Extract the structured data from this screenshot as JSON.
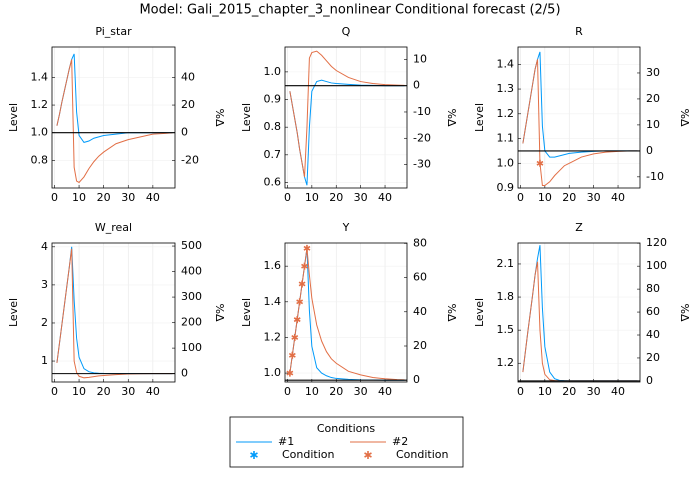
{
  "title": "Model: Gali_2015_chapter_3_nonlinear      Conditional forecast  (2/5)",
  "legend": {
    "title": "Conditions",
    "items": [
      {
        "label": "#1",
        "kind": "line",
        "color": "#009afa"
      },
      {
        "label": "#2",
        "kind": "line",
        "color": "#e26f46"
      },
      {
        "label": "Condition",
        "kind": "star",
        "color": "#009afa"
      },
      {
        "label": "Condition",
        "kind": "star",
        "color": "#e26f46"
      }
    ]
  },
  "chart_data": [
    {
      "type": "line",
      "title": "Pi_star",
      "ylabel": "Level",
      "y2label": "%Δ",
      "grid": true,
      "x": [
        1,
        2,
        3,
        4,
        5,
        6,
        7,
        8,
        9,
        10,
        12,
        14,
        16,
        18,
        20,
        25,
        30,
        35,
        40,
        45,
        48
      ],
      "xlim": [
        -1,
        49
      ],
      "xticks": [
        0,
        10,
        20,
        30,
        40
      ],
      "ylim": [
        0.6,
        1.62
      ],
      "yticks": [
        0.8,
        {
          "value": 1.0,
          "label": "1.0"
        },
        1.2,
        1.4
      ],
      "y2lim": [
        -40,
        62
      ],
      "y2ticks": [
        -20,
        0,
        20,
        40
      ],
      "baseline": 1.0,
      "series": [
        {
          "color": "#009afa",
          "values": [
            1.05,
            1.13,
            1.22,
            1.3,
            1.38,
            1.46,
            1.53,
            1.57,
            1.15,
            0.98,
            0.93,
            0.94,
            0.96,
            0.97,
            0.98,
            0.99,
            1.0,
            1.0,
            1.0,
            1.0,
            1.0
          ]
        },
        {
          "color": "#e26f46",
          "values": [
            1.05,
            1.13,
            1.22,
            1.3,
            1.38,
            1.46,
            1.53,
            0.75,
            0.65,
            0.64,
            0.68,
            0.74,
            0.79,
            0.83,
            0.86,
            0.92,
            0.95,
            0.97,
            0.99,
            0.995,
            1.0
          ]
        }
      ]
    },
    {
      "type": "line",
      "title": "Q",
      "ylabel": "Level",
      "y2label": "%Δ",
      "grid": true,
      "x": [
        1,
        2,
        3,
        4,
        5,
        6,
        7,
        8,
        9,
        10,
        12,
        14,
        16,
        18,
        20,
        25,
        30,
        35,
        40,
        45,
        48
      ],
      "xlim": [
        -1,
        49
      ],
      "xticks": [
        0,
        10,
        20,
        30,
        40
      ],
      "ylim": [
        0.58,
        1.09
      ],
      "yticks": [
        0.6,
        0.7,
        0.8,
        0.9,
        {
          "value": 1.0,
          "label": "1.0"
        }
      ],
      "y2lim": [
        -38.9,
        14.7
      ],
      "y2ticks": [
        -30,
        -20,
        -10,
        0,
        10
      ],
      "baseline": 0.95,
      "series": [
        {
          "color": "#009afa",
          "values": [
            0.93,
            0.88,
            0.83,
            0.78,
            0.72,
            0.67,
            0.62,
            0.59,
            0.8,
            0.93,
            0.965,
            0.97,
            0.965,
            0.96,
            0.958,
            0.955,
            0.952,
            0.951,
            0.95,
            0.95,
            0.95
          ]
        },
        {
          "color": "#e26f46",
          "values": [
            0.93,
            0.88,
            0.83,
            0.78,
            0.72,
            0.67,
            0.62,
            0.8,
            1.05,
            1.07,
            1.075,
            1.06,
            1.04,
            1.02,
            1.005,
            0.98,
            0.965,
            0.958,
            0.954,
            0.952,
            0.951
          ]
        }
      ]
    },
    {
      "type": "line",
      "title": "R",
      "ylabel": "Level",
      "y2label": "%Δ",
      "grid": true,
      "x": [
        1,
        2,
        3,
        4,
        5,
        6,
        7,
        8,
        9,
        10,
        12,
        14,
        16,
        18,
        20,
        25,
        30,
        35,
        40,
        45,
        48
      ],
      "xlim": [
        -1,
        49
      ],
      "xticks": [
        0,
        10,
        20,
        30,
        40
      ],
      "ylim": [
        0.9,
        1.47
      ],
      "yticks": [
        0.9,
        {
          "value": 1.0,
          "label": "1.0"
        },
        1.1,
        1.2,
        1.3,
        1.4
      ],
      "y2lim": [
        -14.3,
        40
      ],
      "y2ticks": [
        -10,
        0,
        10,
        20,
        30
      ],
      "baseline": 1.05,
      "series": [
        {
          "color": "#009afa",
          "values": [
            1.08,
            1.14,
            1.2,
            1.26,
            1.32,
            1.38,
            1.42,
            1.45,
            1.15,
            1.05,
            1.025,
            1.025,
            1.03,
            1.035,
            1.04,
            1.045,
            1.048,
            1.05,
            1.05,
            1.05,
            1.05
          ]
        },
        {
          "color": "#e26f46",
          "values": [
            1.08,
            1.14,
            1.2,
            1.26,
            1.32,
            1.38,
            1.42,
            1.0,
            0.91,
            0.91,
            0.925,
            0.95,
            0.97,
            0.99,
            1.0,
            1.025,
            1.038,
            1.045,
            1.048,
            1.05,
            1.05
          ],
          "condition_x": [
            8
          ],
          "condition_values": [
            1.0
          ]
        }
      ]
    },
    {
      "type": "line",
      "title": "W_real",
      "ylabel": "Level",
      "y2label": "%Δ",
      "grid": true,
      "x": [
        1,
        2,
        3,
        4,
        5,
        6,
        7,
        8,
        9,
        10,
        12,
        14,
        16,
        18,
        20,
        25,
        30,
        35,
        40,
        45,
        48
      ],
      "xlim": [
        -1,
        49
      ],
      "xticks": [
        0,
        10,
        20,
        30,
        40
      ],
      "ylim": [
        0.45,
        4.1
      ],
      "yticks": [
        1,
        2,
        3,
        4
      ],
      "y2lim": [
        -32.8,
        511.9
      ],
      "y2ticks": [
        0,
        100,
        200,
        300,
        400,
        500
      ],
      "baseline": 0.67,
      "series": [
        {
          "color": "#009afa",
          "values": [
            0.95,
            1.45,
            1.95,
            2.45,
            2.95,
            3.45,
            4.0,
            2.6,
            1.6,
            1.1,
            0.8,
            0.72,
            0.69,
            0.68,
            0.675,
            0.67,
            0.67,
            0.67,
            0.67,
            0.67,
            0.67
          ]
        },
        {
          "color": "#e26f46",
          "values": [
            0.95,
            1.45,
            1.95,
            2.45,
            2.95,
            3.45,
            3.95,
            1.0,
            0.7,
            0.6,
            0.56,
            0.57,
            0.59,
            0.61,
            0.62,
            0.645,
            0.66,
            0.665,
            0.67,
            0.67,
            0.67
          ]
        }
      ]
    },
    {
      "type": "line",
      "title": "Y",
      "ylabel": "Level",
      "y2label": "%Δ",
      "grid": true,
      "x": [
        1,
        2,
        3,
        4,
        5,
        6,
        7,
        8,
        9,
        10,
        12,
        14,
        16,
        18,
        20,
        25,
        30,
        35,
        40,
        45,
        48
      ],
      "xlim": [
        -1,
        49
      ],
      "xticks": [
        0,
        10,
        20,
        30,
        40
      ],
      "ylim": [
        0.95,
        1.73
      ],
      "yticks": [
        {
          "value": 1.0,
          "label": "1.0"
        },
        1.2,
        1.4,
        1.6
      ],
      "y2lim": [
        -1.04,
        80.2
      ],
      "y2ticks": [
        0,
        20,
        40,
        60,
        80
      ],
      "baseline": 0.96,
      "series": [
        {
          "color": "#009afa",
          "values": [
            1.0,
            1.1,
            1.2,
            1.3,
            1.4,
            1.5,
            1.6,
            1.7,
            1.35,
            1.15,
            1.03,
            1.0,
            0.985,
            0.975,
            0.97,
            0.965,
            0.962,
            0.961,
            0.96,
            0.96,
            0.96
          ]
        },
        {
          "color": "#e26f46",
          "values": [
            1.0,
            1.1,
            1.2,
            1.3,
            1.4,
            1.5,
            1.6,
            1.7,
            1.55,
            1.42,
            1.27,
            1.18,
            1.12,
            1.08,
            1.055,
            1.01,
            0.99,
            0.975,
            0.968,
            0.963,
            0.962
          ],
          "condition_x": [
            1,
            2,
            3,
            4,
            5,
            6,
            7,
            8
          ],
          "condition_values": [
            1.0,
            1.1,
            1.2,
            1.3,
            1.4,
            1.5,
            1.6,
            1.7
          ]
        }
      ]
    },
    {
      "type": "line",
      "title": "Z",
      "ylabel": "Level",
      "y2label": "%Δ",
      "grid": true,
      "x": [
        1,
        2,
        3,
        4,
        5,
        6,
        7,
        8,
        9,
        10,
        12,
        14,
        16,
        18,
        20,
        25,
        30,
        35,
        40,
        45,
        48
      ],
      "xlim": [
        -1,
        49
      ],
      "xticks": [
        0,
        10,
        20,
        30,
        40
      ],
      "ylim": [
        1.03,
        2.29
      ],
      "yticks": [
        1.2,
        1.5,
        1.8,
        2.1
      ],
      "y2lim": [
        -0.96,
        120.2
      ],
      "y2ticks": [
        0,
        20,
        40,
        60,
        80,
        100,
        120
      ],
      "baseline": 1.04,
      "series": [
        {
          "color": "#009afa",
          "values": [
            1.12,
            1.3,
            1.48,
            1.65,
            1.82,
            2.0,
            2.15,
            2.27,
            1.7,
            1.35,
            1.12,
            1.06,
            1.045,
            1.042,
            1.04,
            1.04,
            1.04,
            1.04,
            1.04,
            1.04,
            1.04
          ]
        },
        {
          "color": "#e26f46",
          "values": [
            1.12,
            1.3,
            1.48,
            1.65,
            1.82,
            2.0,
            2.12,
            1.5,
            1.2,
            1.1,
            1.05,
            1.042,
            1.04,
            1.04,
            1.04,
            1.04,
            1.04,
            1.04,
            1.04,
            1.04,
            1.04
          ]
        }
      ]
    }
  ]
}
